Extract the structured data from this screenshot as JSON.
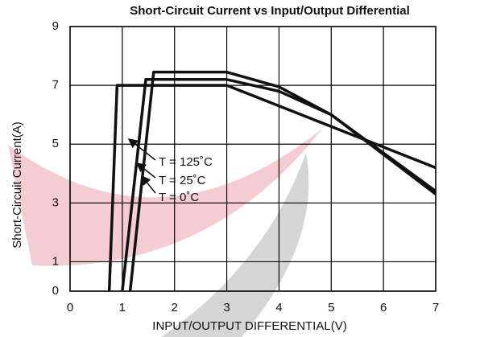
{
  "chart_data": {
    "type": "line",
    "title": "Short-Circuit Current vs Input/Output Differential",
    "xlabel": "INPUT/OUTPUT DIFFERENTIAL(V)",
    "ylabel": "Short-Circuit Current(A)",
    "xlim": [
      0,
      7
    ],
    "xticks": [
      0,
      1,
      2,
      3,
      4,
      5,
      6,
      7
    ],
    "ylim": [
      0,
      9
    ],
    "yticks": [
      0,
      1,
      3,
      5,
      7,
      9
    ],
    "grid": true,
    "series": [
      {
        "name": "T = 125˚C",
        "color": "#111111",
        "x": [
          0.75,
          0.9,
          3,
          7
        ],
        "values": [
          0,
          7,
          7,
          4.2
        ]
      },
      {
        "name": "T = 25˚C",
        "color": "#111111",
        "x": [
          1.0,
          1.45,
          3,
          4,
          5,
          7
        ],
        "values": [
          0,
          7.2,
          7.2,
          6.8,
          6.0,
          3.4
        ]
      },
      {
        "name": "T =  0˚C",
        "color": "#111111",
        "x": [
          1.15,
          1.6,
          3,
          4,
          5,
          7
        ],
        "values": [
          0,
          7.45,
          7.45,
          6.95,
          6.0,
          3.3
        ]
      }
    ]
  }
}
